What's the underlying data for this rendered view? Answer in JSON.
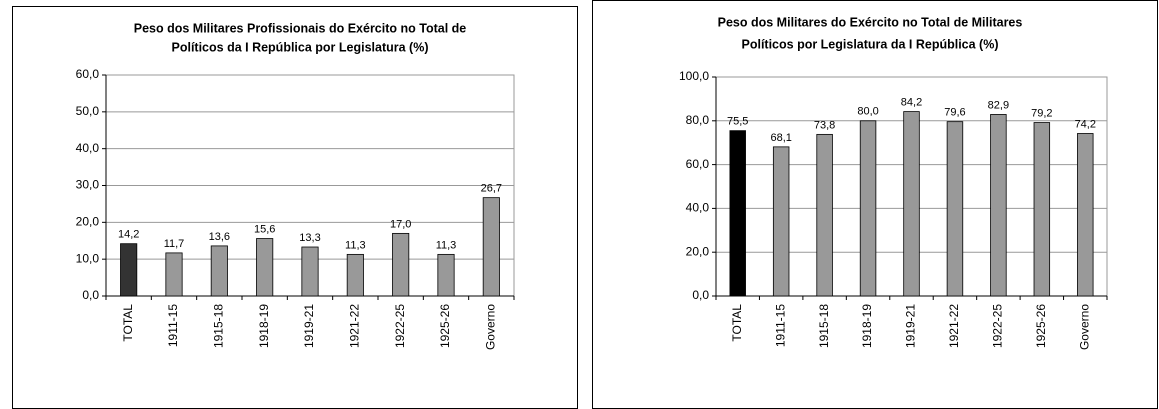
{
  "chart_data": [
    {
      "type": "bar",
      "title": [
        "Peso dos Militares Profissionais do Exército no Total de",
        "Políticos da I República por Legislatura  (%)"
      ],
      "categories": [
        "TOTAL",
        "1911-15",
        "1915-18",
        "1918-19",
        "1919-21",
        "1921-22",
        "1922-25",
        "1925-26",
        "Governo"
      ],
      "values": [
        14.2,
        11.7,
        13.6,
        15.6,
        13.3,
        11.3,
        17.0,
        11.3,
        26.7
      ],
      "value_labels": [
        "14,2",
        "11,7",
        "13,6",
        "15,6",
        "13,3",
        "11,3",
        "17,0",
        "11,3",
        "26,7"
      ],
      "colors": [
        "#333333",
        "#999999",
        "#999999",
        "#999999",
        "#999999",
        "#999999",
        "#999999",
        "#999999",
        "#999999"
      ],
      "ylim": [
        0,
        60
      ],
      "yticks": [
        {
          "value": 0,
          "label": "0,0"
        },
        {
          "value": 10,
          "label": "10,0"
        },
        {
          "value": 20,
          "label": "20,0"
        },
        {
          "value": 30,
          "label": "30,0"
        },
        {
          "value": 40,
          "label": "40,0"
        },
        {
          "value": 50,
          "label": "50,0"
        },
        {
          "value": 60,
          "label": "60,0"
        }
      ],
      "grid": true
    },
    {
      "type": "bar",
      "title": [
        "Peso dos Militares do Exército no Total de Militares",
        "Políticos por Legislatura da I República  (%)"
      ],
      "categories": [
        "TOTAL",
        "1911-15",
        "1915-18",
        "1918-19",
        "1919-21",
        "1921-22",
        "1922-25",
        "1925-26",
        "Governo"
      ],
      "values": [
        75.5,
        68.1,
        73.8,
        80.0,
        84.2,
        79.6,
        82.9,
        79.2,
        74.2
      ],
      "value_labels": [
        "75,5",
        "68,1",
        "73,8",
        "80,0",
        "84,2",
        "79,6",
        "82,9",
        "79,2",
        "74,2"
      ],
      "colors": [
        "#000000",
        "#999999",
        "#999999",
        "#999999",
        "#999999",
        "#999999",
        "#999999",
        "#999999",
        "#999999"
      ],
      "ylim": [
        0,
        100
      ],
      "yticks": [
        {
          "value": 0,
          "label": "0,0"
        },
        {
          "value": 20,
          "label": "20,0"
        },
        {
          "value": 40,
          "label": "40,0"
        },
        {
          "value": 60,
          "label": "60,0"
        },
        {
          "value": 80,
          "label": "80,0"
        },
        {
          "value": 100,
          "label": "100,0"
        }
      ],
      "grid": true
    }
  ]
}
